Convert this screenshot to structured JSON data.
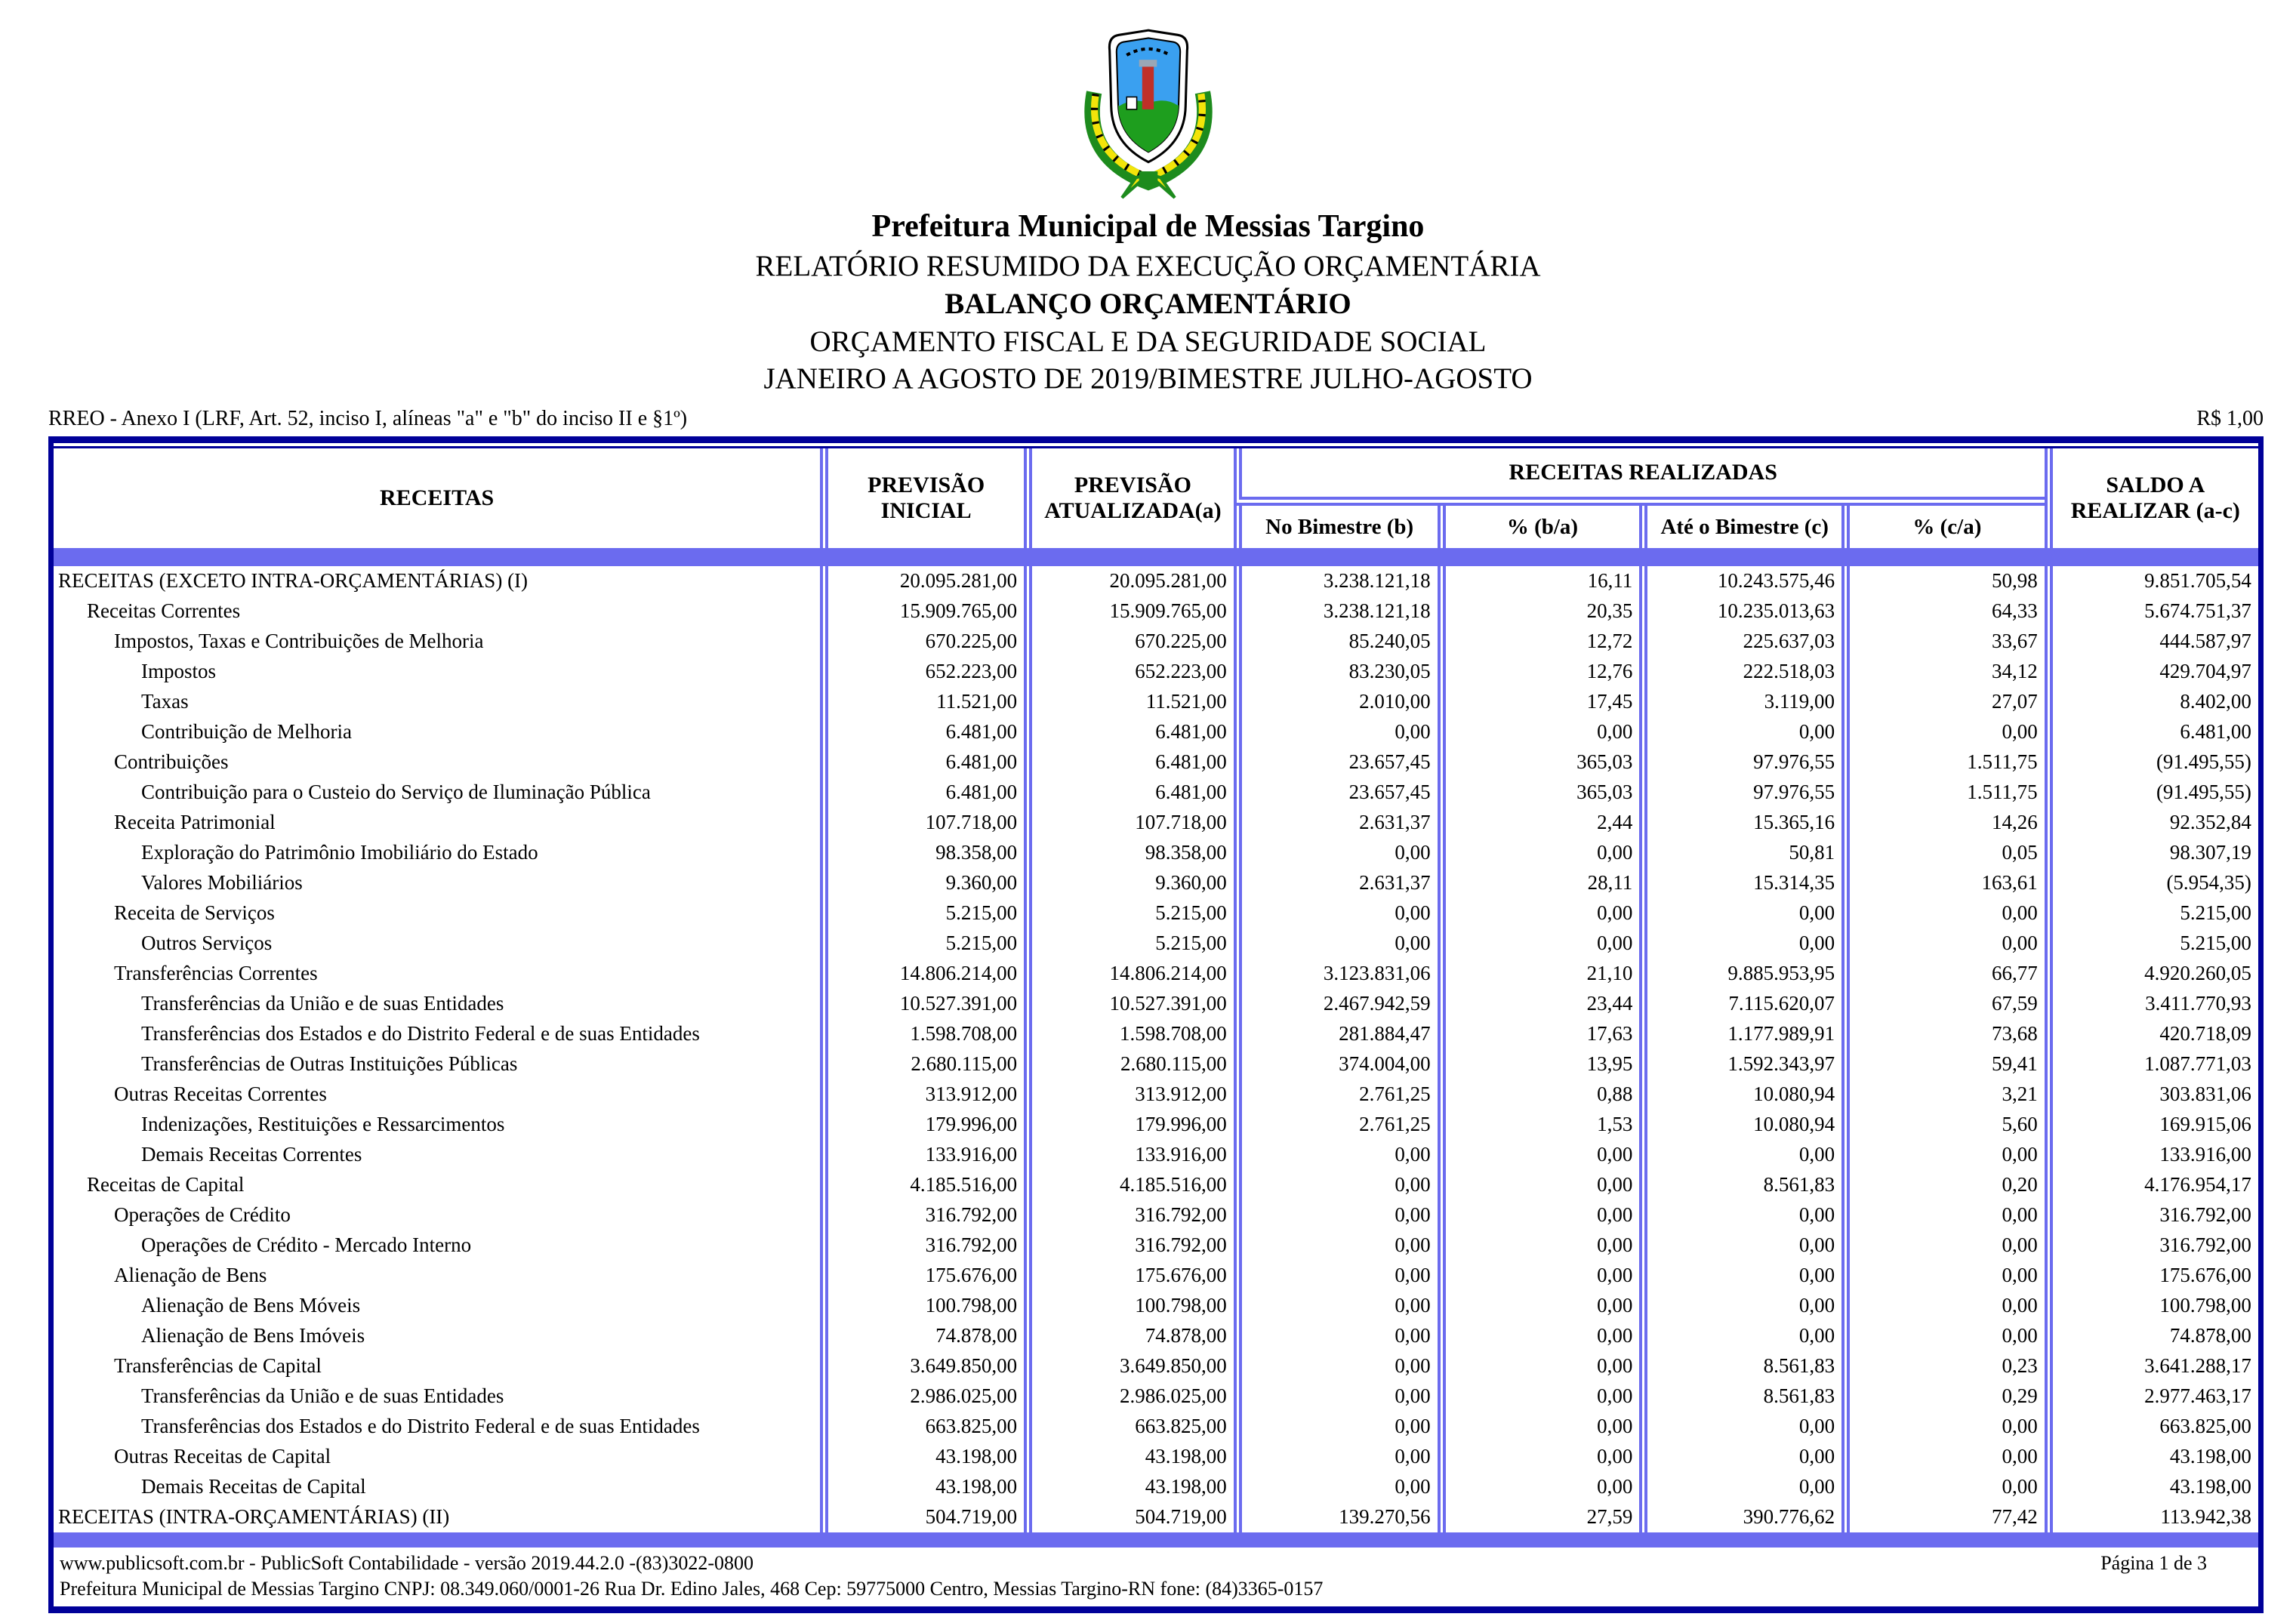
{
  "header": {
    "logo": "municipal-coat-of-arms",
    "org": "Prefeitura Municipal de Messias Targino",
    "report": "RELATÓRIO RESUMIDO DA EXECUÇÃO ORÇAMENTÁRIA",
    "title": "BALANÇO ORÇAMENTÁRIO",
    "subtitle": "ORÇAMENTO FISCAL E DA SEGURIDADE SOCIAL",
    "period": "JANEIRO A AGOSTO DE 2019/BIMESTRE JULHO-AGOSTO",
    "annex": "RREO - Anexo I (LRF, Art. 52, inciso I, alíneas \"a\" e \"b\" do inciso II e §1º)",
    "currency_note": "R$ 1,00"
  },
  "table": {
    "col_receitas": "RECEITAS",
    "col_previsao_inicial": "PREVISÃO INICIAL",
    "col_previsao_atualizada": "PREVISÃO ATUALIZADA(a)",
    "group_receitas_realizadas": "RECEITAS REALIZADAS",
    "sub_headers": [
      "No Bimestre (b)",
      "% (b/a)",
      "Até o Bimestre (c)",
      "% (c/a)"
    ],
    "col_saldo": "SALDO A REALIZAR (a-c)",
    "rows": [
      {
        "label": "RECEITAS (EXCETO INTRA-ORÇAMENTÁRIAS) (I)",
        "indent": 0,
        "values": [
          "20.095.281,00",
          "20.095.281,00",
          "3.238.121,18",
          "16,11",
          "10.243.575,46",
          "50,98",
          "9.851.705,54"
        ]
      },
      {
        "label": "Receitas Correntes",
        "indent": 1,
        "values": [
          "15.909.765,00",
          "15.909.765,00",
          "3.238.121,18",
          "20,35",
          "10.235.013,63",
          "64,33",
          "5.674.751,37"
        ]
      },
      {
        "label": "Impostos, Taxas e Contribuições de Melhoria",
        "indent": 2,
        "values": [
          "670.225,00",
          "670.225,00",
          "85.240,05",
          "12,72",
          "225.637,03",
          "33,67",
          "444.587,97"
        ]
      },
      {
        "label": "Impostos",
        "indent": 3,
        "values": [
          "652.223,00",
          "652.223,00",
          "83.230,05",
          "12,76",
          "222.518,03",
          "34,12",
          "429.704,97"
        ]
      },
      {
        "label": "Taxas",
        "indent": 3,
        "values": [
          "11.521,00",
          "11.521,00",
          "2.010,00",
          "17,45",
          "3.119,00",
          "27,07",
          "8.402,00"
        ]
      },
      {
        "label": "Contribuição de Melhoria",
        "indent": 3,
        "values": [
          "6.481,00",
          "6.481,00",
          "0,00",
          "0,00",
          "0,00",
          "0,00",
          "6.481,00"
        ]
      },
      {
        "label": "Contribuições",
        "indent": 2,
        "values": [
          "6.481,00",
          "6.481,00",
          "23.657,45",
          "365,03",
          "97.976,55",
          "1.511,75",
          "(91.495,55)"
        ]
      },
      {
        "label": "Contribuição para o Custeio do Serviço de Iluminação Pública",
        "indent": 3,
        "values": [
          "6.481,00",
          "6.481,00",
          "23.657,45",
          "365,03",
          "97.976,55",
          "1.511,75",
          "(91.495,55)"
        ]
      },
      {
        "label": "Receita Patrimonial",
        "indent": 2,
        "values": [
          "107.718,00",
          "107.718,00",
          "2.631,37",
          "2,44",
          "15.365,16",
          "14,26",
          "92.352,84"
        ]
      },
      {
        "label": "Exploração do Patrimônio Imobiliário do Estado",
        "indent": 3,
        "values": [
          "98.358,00",
          "98.358,00",
          "0,00",
          "0,00",
          "50,81",
          "0,05",
          "98.307,19"
        ]
      },
      {
        "label": "Valores Mobiliários",
        "indent": 3,
        "values": [
          "9.360,00",
          "9.360,00",
          "2.631,37",
          "28,11",
          "15.314,35",
          "163,61",
          "(5.954,35)"
        ]
      },
      {
        "label": "Receita de Serviços",
        "indent": 2,
        "values": [
          "5.215,00",
          "5.215,00",
          "0,00",
          "0,00",
          "0,00",
          "0,00",
          "5.215,00"
        ]
      },
      {
        "label": "Outros Serviços",
        "indent": 3,
        "values": [
          "5.215,00",
          "5.215,00",
          "0,00",
          "0,00",
          "0,00",
          "0,00",
          "5.215,00"
        ]
      },
      {
        "label": "Transferências Correntes",
        "indent": 2,
        "values": [
          "14.806.214,00",
          "14.806.214,00",
          "3.123.831,06",
          "21,10",
          "9.885.953,95",
          "66,77",
          "4.920.260,05"
        ]
      },
      {
        "label": "Transferências da União e de suas Entidades",
        "indent": 3,
        "values": [
          "10.527.391,00",
          "10.527.391,00",
          "2.467.942,59",
          "23,44",
          "7.115.620,07",
          "67,59",
          "3.411.770,93"
        ]
      },
      {
        "label": "Transferências dos Estados e do Distrito Federal e de suas Entidades",
        "indent": 3,
        "values": [
          "1.598.708,00",
          "1.598.708,00",
          "281.884,47",
          "17,63",
          "1.177.989,91",
          "73,68",
          "420.718,09"
        ]
      },
      {
        "label": "Transferências de Outras Instituições Públicas",
        "indent": 3,
        "values": [
          "2.680.115,00",
          "2.680.115,00",
          "374.004,00",
          "13,95",
          "1.592.343,97",
          "59,41",
          "1.087.771,03"
        ]
      },
      {
        "label": "Outras Receitas Correntes",
        "indent": 2,
        "values": [
          "313.912,00",
          "313.912,00",
          "2.761,25",
          "0,88",
          "10.080,94",
          "3,21",
          "303.831,06"
        ]
      },
      {
        "label": "Indenizações, Restituições e Ressarcimentos",
        "indent": 3,
        "values": [
          "179.996,00",
          "179.996,00",
          "2.761,25",
          "1,53",
          "10.080,94",
          "5,60",
          "169.915,06"
        ]
      },
      {
        "label": "Demais Receitas Correntes",
        "indent": 3,
        "values": [
          "133.916,00",
          "133.916,00",
          "0,00",
          "0,00",
          "0,00",
          "0,00",
          "133.916,00"
        ]
      },
      {
        "label": "Receitas de Capital",
        "indent": 1,
        "values": [
          "4.185.516,00",
          "4.185.516,00",
          "0,00",
          "0,00",
          "8.561,83",
          "0,20",
          "4.176.954,17"
        ]
      },
      {
        "label": "Operações de Crédito",
        "indent": 2,
        "values": [
          "316.792,00",
          "316.792,00",
          "0,00",
          "0,00",
          "0,00",
          "0,00",
          "316.792,00"
        ]
      },
      {
        "label": "Operações de Crédito - Mercado Interno",
        "indent": 3,
        "values": [
          "316.792,00",
          "316.792,00",
          "0,00",
          "0,00",
          "0,00",
          "0,00",
          "316.792,00"
        ]
      },
      {
        "label": "Alienação de Bens",
        "indent": 2,
        "values": [
          "175.676,00",
          "175.676,00",
          "0,00",
          "0,00",
          "0,00",
          "0,00",
          "175.676,00"
        ]
      },
      {
        "label": "Alienação de Bens Móveis",
        "indent": 3,
        "values": [
          "100.798,00",
          "100.798,00",
          "0,00",
          "0,00",
          "0,00",
          "0,00",
          "100.798,00"
        ]
      },
      {
        "label": "Alienação de Bens Imóveis",
        "indent": 3,
        "values": [
          "74.878,00",
          "74.878,00",
          "0,00",
          "0,00",
          "0,00",
          "0,00",
          "74.878,00"
        ]
      },
      {
        "label": "Transferências de Capital",
        "indent": 2,
        "values": [
          "3.649.850,00",
          "3.649.850,00",
          "0,00",
          "0,00",
          "8.561,83",
          "0,23",
          "3.641.288,17"
        ]
      },
      {
        "label": "Transferências da União e de suas Entidades",
        "indent": 3,
        "values": [
          "2.986.025,00",
          "2.986.025,00",
          "0,00",
          "0,00",
          "8.561,83",
          "0,29",
          "2.977.463,17"
        ]
      },
      {
        "label": "Transferências dos Estados e do Distrito Federal e de suas Entidades",
        "indent": 3,
        "values": [
          "663.825,00",
          "663.825,00",
          "0,00",
          "0,00",
          "0,00",
          "0,00",
          "663.825,00"
        ]
      },
      {
        "label": "Outras Receitas de Capital",
        "indent": 2,
        "values": [
          "43.198,00",
          "43.198,00",
          "0,00",
          "0,00",
          "0,00",
          "0,00",
          "43.198,00"
        ]
      },
      {
        "label": "Demais Receitas de Capital",
        "indent": 3,
        "values": [
          "43.198,00",
          "43.198,00",
          "0,00",
          "0,00",
          "0,00",
          "0,00",
          "43.198,00"
        ]
      },
      {
        "label": "RECEITAS (INTRA-ORÇAMENTÁRIAS) (II)",
        "indent": 0,
        "values": [
          "504.719,00",
          "504.719,00",
          "139.270,56",
          "27,59",
          "390.776,62",
          "77,42",
          "113.942,38"
        ]
      }
    ]
  },
  "footer": {
    "line1": "www.publicsoft.com.br - PublicSoft Contabilidade - versão 2019.44.2.0 -(83)3022-0800",
    "line2": "Prefeitura Municipal de Messias Targino CNPJ: 08.349.060/0001-26 Rua Dr. Edino Jales, 468 Cep: 59775000 Centro, Messias Targino-RN fone: (84)3365-0157",
    "page": "Página 1 de 3"
  },
  "colors": {
    "navy": "#000099",
    "periwinkle": "#6B6BEF"
  }
}
